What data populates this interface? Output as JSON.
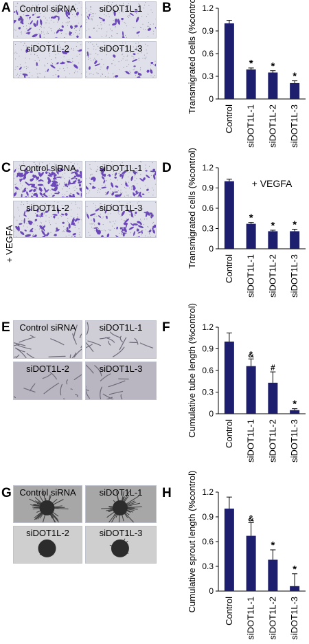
{
  "panels": {
    "A": {
      "letter": "A",
      "images": [
        "Control siRNA",
        "siDOT1L-1",
        "siDOT1L-2",
        "siDOT1L-3"
      ],
      "style": "crystal-violet-sparse"
    },
    "C": {
      "letter": "C",
      "images": [
        "Control siRNA",
        "siDOT1L-1",
        "siDOT1L-2",
        "siDOT1L-3"
      ],
      "side_label": "+ VEGFA",
      "style": "crystal-violet-dense"
    },
    "E": {
      "letter": "E",
      "images": [
        "Control siRNA",
        "siDOT1L-1",
        "siDOT1L-2",
        "siDOT1L-3"
      ],
      "style": "tube-network"
    },
    "G": {
      "letter": "G",
      "images": [
        "Control siRNA",
        "siDOT1L-1",
        "siDOT1L-2",
        "siDOT1L-3"
      ],
      "style": "spheroid-sprout"
    }
  },
  "chart_data": [
    {
      "panel": "B",
      "letter": "B",
      "type": "bar",
      "categories": [
        "Control",
        "siDOT1L-1",
        "siDOT1L-2",
        "siDOT1L-3"
      ],
      "values": [
        1.0,
        0.39,
        0.35,
        0.21
      ],
      "errors": [
        0.04,
        0.02,
        0.025,
        0.03
      ],
      "markers": [
        "",
        "*",
        "*",
        "*"
      ],
      "ylabel": "Transmigrated cells (%control)",
      "ylim": [
        0,
        1.2
      ],
      "yticks": [
        "0",
        "0.3",
        "0.6",
        "0.9",
        "1.2"
      ],
      "annotation": "",
      "bar_color": "#1d1e6e"
    },
    {
      "panel": "D",
      "letter": "D",
      "type": "bar",
      "categories": [
        "Control",
        "siDOT1L-1",
        "siDOT1L-2",
        "siDOT1L-3"
      ],
      "values": [
        1.0,
        0.37,
        0.26,
        0.26
      ],
      "errors": [
        0.03,
        0.02,
        0.015,
        0.03
      ],
      "markers": [
        "",
        "*",
        "*",
        "*"
      ],
      "ylabel": "Transmigrated cells (%control)",
      "ylim": [
        0,
        1.2
      ],
      "yticks": [
        "0",
        "0.3",
        "0.6",
        "0.9",
        "1.2"
      ],
      "annotation": "+ VEGFA",
      "bar_color": "#1d1e6e"
    },
    {
      "panel": "F",
      "letter": "F",
      "type": "bar",
      "categories": [
        "Control",
        "siDOT1L-1",
        "siDOT1L-2",
        "siDOT1L-3"
      ],
      "values": [
        1.0,
        0.66,
        0.43,
        0.05
      ],
      "errors": [
        0.12,
        0.1,
        0.15,
        0.02
      ],
      "markers": [
        "",
        "&",
        "#",
        "*"
      ],
      "ylabel": "Cumulative tube length (%control)",
      "ylim": [
        0,
        1.2
      ],
      "yticks": [
        "0",
        "0.3",
        "0.6",
        "0.9",
        "1.2"
      ],
      "annotation": "",
      "bar_color": "#1d1e6e"
    },
    {
      "panel": "H",
      "letter": "H",
      "type": "bar",
      "categories": [
        "Control",
        "siDOT1L-1",
        "siDOT1L-2",
        "siDOT1L-3"
      ],
      "values": [
        1.0,
        0.67,
        0.38,
        0.06
      ],
      "errors": [
        0.14,
        0.16,
        0.12,
        0.15
      ],
      "markers": [
        "",
        "&",
        "*",
        "*"
      ],
      "ylabel": "Cumulative sprout length (%control)",
      "ylim": [
        0,
        1.2
      ],
      "yticks": [
        "0",
        "0.3",
        "0.6",
        "0.9",
        "1.2"
      ],
      "annotation": "",
      "bar_color": "#1d1e6e"
    }
  ]
}
